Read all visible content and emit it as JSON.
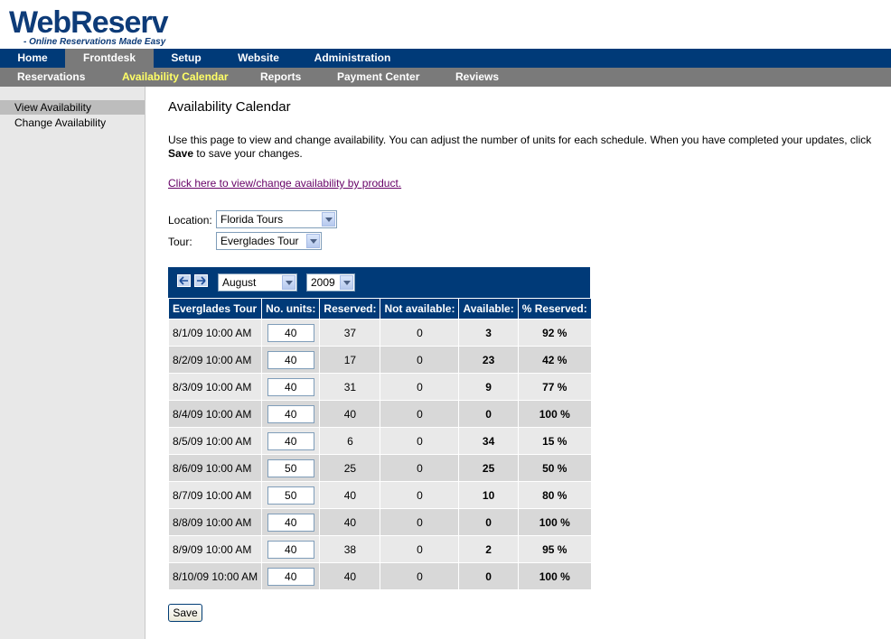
{
  "logo": {
    "title": "WebReserv",
    "tagline": "- Online Reservations Made Easy"
  },
  "topnav": [
    "Home",
    "Frontdesk",
    "Setup",
    "Website",
    "Administration"
  ],
  "subnav": [
    "Reservations",
    "Availability Calendar",
    "Reports",
    "Payment Center",
    "Reviews"
  ],
  "sidebar": [
    "View Availability",
    "Change Availability"
  ],
  "page": {
    "title": "Availability Calendar",
    "intro_1": "Use this page to view and change availability. You can adjust the number of units for each schedule. When you have completed your updates, click",
    "intro_save": "Save",
    "intro_2": " to save your changes.",
    "link": "Click here to view/change availability by product.",
    "location_label": "Location:",
    "location_value": "Florida Tours",
    "tour_label": "Tour:",
    "tour_value": "Everglades Tour",
    "month": "August",
    "year": "2009",
    "save": "Save"
  },
  "table": {
    "headers": [
      "Everglades Tour",
      "No. units:",
      "Reserved:",
      "Not available:",
      "Available:",
      "% Reserved:"
    ],
    "rows": [
      [
        "8/1/09 10:00 AM",
        "40",
        "37",
        "0",
        "3",
        "92 %"
      ],
      [
        "8/2/09 10:00 AM",
        "40",
        "17",
        "0",
        "23",
        "42 %"
      ],
      [
        "8/3/09 10:00 AM",
        "40",
        "31",
        "0",
        "9",
        "77 %"
      ],
      [
        "8/4/09 10:00 AM",
        "40",
        "40",
        "0",
        "0",
        "100 %"
      ],
      [
        "8/5/09 10:00 AM",
        "40",
        "6",
        "0",
        "34",
        "15 %"
      ],
      [
        "8/6/09 10:00 AM",
        "50",
        "25",
        "0",
        "25",
        "50 %"
      ],
      [
        "8/7/09 10:00 AM",
        "50",
        "40",
        "0",
        "10",
        "80 %"
      ],
      [
        "8/8/09 10:00 AM",
        "40",
        "40",
        "0",
        "0",
        "100 %"
      ],
      [
        "8/9/09 10:00 AM",
        "40",
        "38",
        "0",
        "2",
        "95 %"
      ],
      [
        "8/10/09 10:00 AM",
        "40",
        "40",
        "0",
        "0",
        "100 %"
      ]
    ]
  }
}
